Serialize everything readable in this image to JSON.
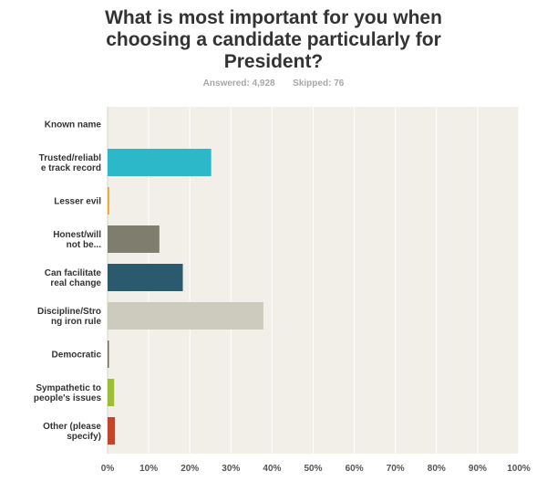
{
  "title": "What is most important for you when\nchoosing a candidate particularly for\nPresident?",
  "stats": {
    "answered_label": "Answered:",
    "answered_value": "4,928",
    "skipped_label": "Skipped:",
    "skipped_value": "76"
  },
  "chart_data": {
    "type": "bar",
    "orientation": "horizontal",
    "categories": [
      [
        "Known name"
      ],
      [
        "Trusted/reliabl",
        "e track record"
      ],
      [
        "Lesser evil"
      ],
      [
        "Honest/will",
        "not be..."
      ],
      [
        "Can facilitate",
        "real change"
      ],
      [
        "Discipline/Stro",
        "ng iron rule"
      ],
      [
        "Democratic"
      ],
      [
        "Sympathetic to",
        "people's issues"
      ],
      [
        "Other (please",
        "specify)"
      ]
    ],
    "values": [
      0.0,
      25.2,
      0.4,
      12.6,
      18.3,
      37.9,
      0.2,
      1.6,
      1.8
    ],
    "value_unit": "percent",
    "colors": [
      "#4aa0c0",
      "#2cb8c8",
      "#e8a735",
      "#7f7d6e",
      "#2b5a6e",
      "#cdcbbd",
      "#6f6c5c",
      "#9fbe38",
      "#c4452a"
    ],
    "x_ticks": [
      "0%",
      "10%",
      "20%",
      "30%",
      "40%",
      "50%",
      "60%",
      "70%",
      "80%",
      "90%",
      "100%"
    ],
    "xlim": [
      0,
      100
    ],
    "grid": true,
    "plot_background": "#f1efe8",
    "grid_color": "#ffffff"
  }
}
